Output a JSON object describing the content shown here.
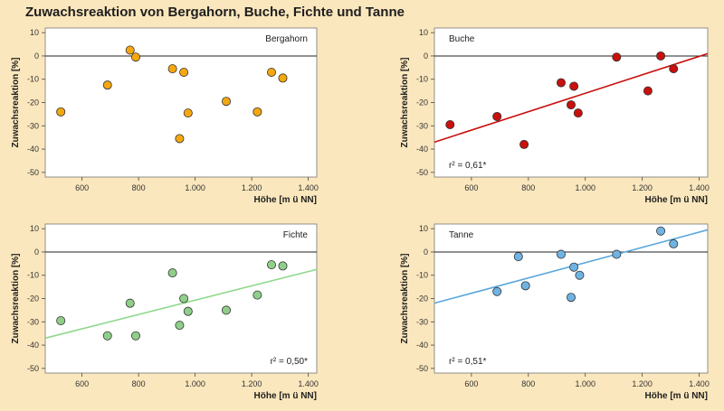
{
  "title": "Zuwachsreaktion von Bergahorn, Buche, Fichte und Tanne",
  "chart_data": [
    {
      "type": "scatter",
      "species": "Bergahorn",
      "color": "#f5a70f",
      "xlabel": "Höhe [m ü NN]",
      "ylabel": "Zuwachsreaktion [%]",
      "xlim": [
        470,
        1430
      ],
      "ylim": [
        -52,
        12
      ],
      "xticks": [
        600,
        800,
        1000,
        1200,
        1400
      ],
      "xtick_labels": [
        "600",
        "800",
        "1.000",
        "1.200",
        "1.400"
      ],
      "yticks": [
        10,
        0,
        -10,
        -20,
        -30,
        -40,
        -50
      ],
      "ytick_labels": [
        "10",
        "0",
        "-10",
        "-20",
        "-30",
        "-40",
        "-50"
      ],
      "r2_text": "",
      "trend": null,
      "points": [
        {
          "x": 525,
          "y": -24
        },
        {
          "x": 690,
          "y": -12.5
        },
        {
          "x": 770,
          "y": 2.5
        },
        {
          "x": 790,
          "y": -0.5
        },
        {
          "x": 920,
          "y": -5.5
        },
        {
          "x": 945,
          "y": -35.5
        },
        {
          "x": 960,
          "y": -7
        },
        {
          "x": 975,
          "y": -24.5
        },
        {
          "x": 1110,
          "y": -19.5
        },
        {
          "x": 1220,
          "y": -24
        },
        {
          "x": 1270,
          "y": -7
        },
        {
          "x": 1310,
          "y": -9.5
        }
      ]
    },
    {
      "type": "scatter",
      "species": "Buche",
      "color": "#c8100d",
      "trend_color": "#c8100d",
      "xlabel": "Höhe [m ü NN]",
      "ylabel": "Zuwachsreaktion [%]",
      "xlim": [
        470,
        1430
      ],
      "ylim": [
        -52,
        12
      ],
      "xticks": [
        600,
        800,
        1000,
        1200,
        1400
      ],
      "xtick_labels": [
        "600",
        "800",
        "1.000",
        "1.200",
        "1.400"
      ],
      "yticks": [
        10,
        0,
        -10,
        -20,
        -30,
        -40,
        -50
      ],
      "ytick_labels": [
        "10",
        "0",
        "-10",
        "-20",
        "-30",
        "-40",
        "-50"
      ],
      "r2_text": "r² = 0,61*",
      "trend": {
        "x0": 470,
        "y0": -37,
        "x1": 1430,
        "y1": 1
      },
      "points": [
        {
          "x": 525,
          "y": -29.5
        },
        {
          "x": 690,
          "y": -26
        },
        {
          "x": 785,
          "y": -38
        },
        {
          "x": 915,
          "y": -11.5
        },
        {
          "x": 950,
          "y": -21
        },
        {
          "x": 960,
          "y": -13
        },
        {
          "x": 975,
          "y": -24.5
        },
        {
          "x": 1110,
          "y": -0.5
        },
        {
          "x": 1220,
          "y": -15
        },
        {
          "x": 1265,
          "y": 0
        },
        {
          "x": 1310,
          "y": -5.5
        }
      ]
    },
    {
      "type": "scatter",
      "species": "Fichte",
      "color": "#8fcf8a",
      "trend_color": "#8fd88a",
      "xlabel": "Höhe [m ü NN]",
      "ylabel": "Zuwachsreaktion [%]",
      "xlim": [
        470,
        1430
      ],
      "ylim": [
        -52,
        12
      ],
      "xticks": [
        600,
        800,
        1000,
        1200,
        1400
      ],
      "xtick_labels": [
        "600",
        "800",
        "1.000",
        "1.200",
        "1.400"
      ],
      "yticks": [
        10,
        0,
        -10,
        -20,
        -30,
        -40,
        -50
      ],
      "ytick_labels": [
        "10",
        "0",
        "-10",
        "-20",
        "-30",
        "-40",
        "-50"
      ],
      "r2_text": "r² = 0,50*",
      "trend": {
        "x0": 470,
        "y0": -37,
        "x1": 1430,
        "y1": -7.5
      },
      "points": [
        {
          "x": 525,
          "y": -29.5
        },
        {
          "x": 690,
          "y": -36
        },
        {
          "x": 770,
          "y": -22
        },
        {
          "x": 790,
          "y": -36
        },
        {
          "x": 920,
          "y": -9
        },
        {
          "x": 945,
          "y": -31.5
        },
        {
          "x": 960,
          "y": -20
        },
        {
          "x": 975,
          "y": -25.5
        },
        {
          "x": 1110,
          "y": -25
        },
        {
          "x": 1220,
          "y": -18.5
        },
        {
          "x": 1270,
          "y": -5.5
        },
        {
          "x": 1310,
          "y": -6
        }
      ]
    },
    {
      "type": "scatter",
      "species": "Tanne",
      "color": "#6fb3e2",
      "trend_color": "#5aa7dc",
      "xlabel": "Höhe [m ü NN]",
      "ylabel": "Zuwachsreaktion [%]",
      "xlim": [
        470,
        1430
      ],
      "ylim": [
        -52,
        12
      ],
      "xticks": [
        600,
        800,
        1000,
        1200,
        1400
      ],
      "xtick_labels": [
        "600",
        "800",
        "1.000",
        "1.200",
        "1.400"
      ],
      "yticks": [
        10,
        0,
        -10,
        -20,
        -30,
        -40,
        -50
      ],
      "ytick_labels": [
        "10",
        "0",
        "-10",
        "-20",
        "-30",
        "-40",
        "-50"
      ],
      "r2_text": "r² = 0,51*",
      "trend": {
        "x0": 470,
        "y0": -22,
        "x1": 1430,
        "y1": 9.5
      },
      "points": [
        {
          "x": 690,
          "y": -17
        },
        {
          "x": 765,
          "y": -2
        },
        {
          "x": 790,
          "y": -14.5
        },
        {
          "x": 915,
          "y": -1
        },
        {
          "x": 950,
          "y": -19.5
        },
        {
          "x": 960,
          "y": -6.5
        },
        {
          "x": 980,
          "y": -10
        },
        {
          "x": 1110,
          "y": -1
        },
        {
          "x": 1265,
          "y": 9
        },
        {
          "x": 1310,
          "y": 3.5
        }
      ]
    }
  ]
}
